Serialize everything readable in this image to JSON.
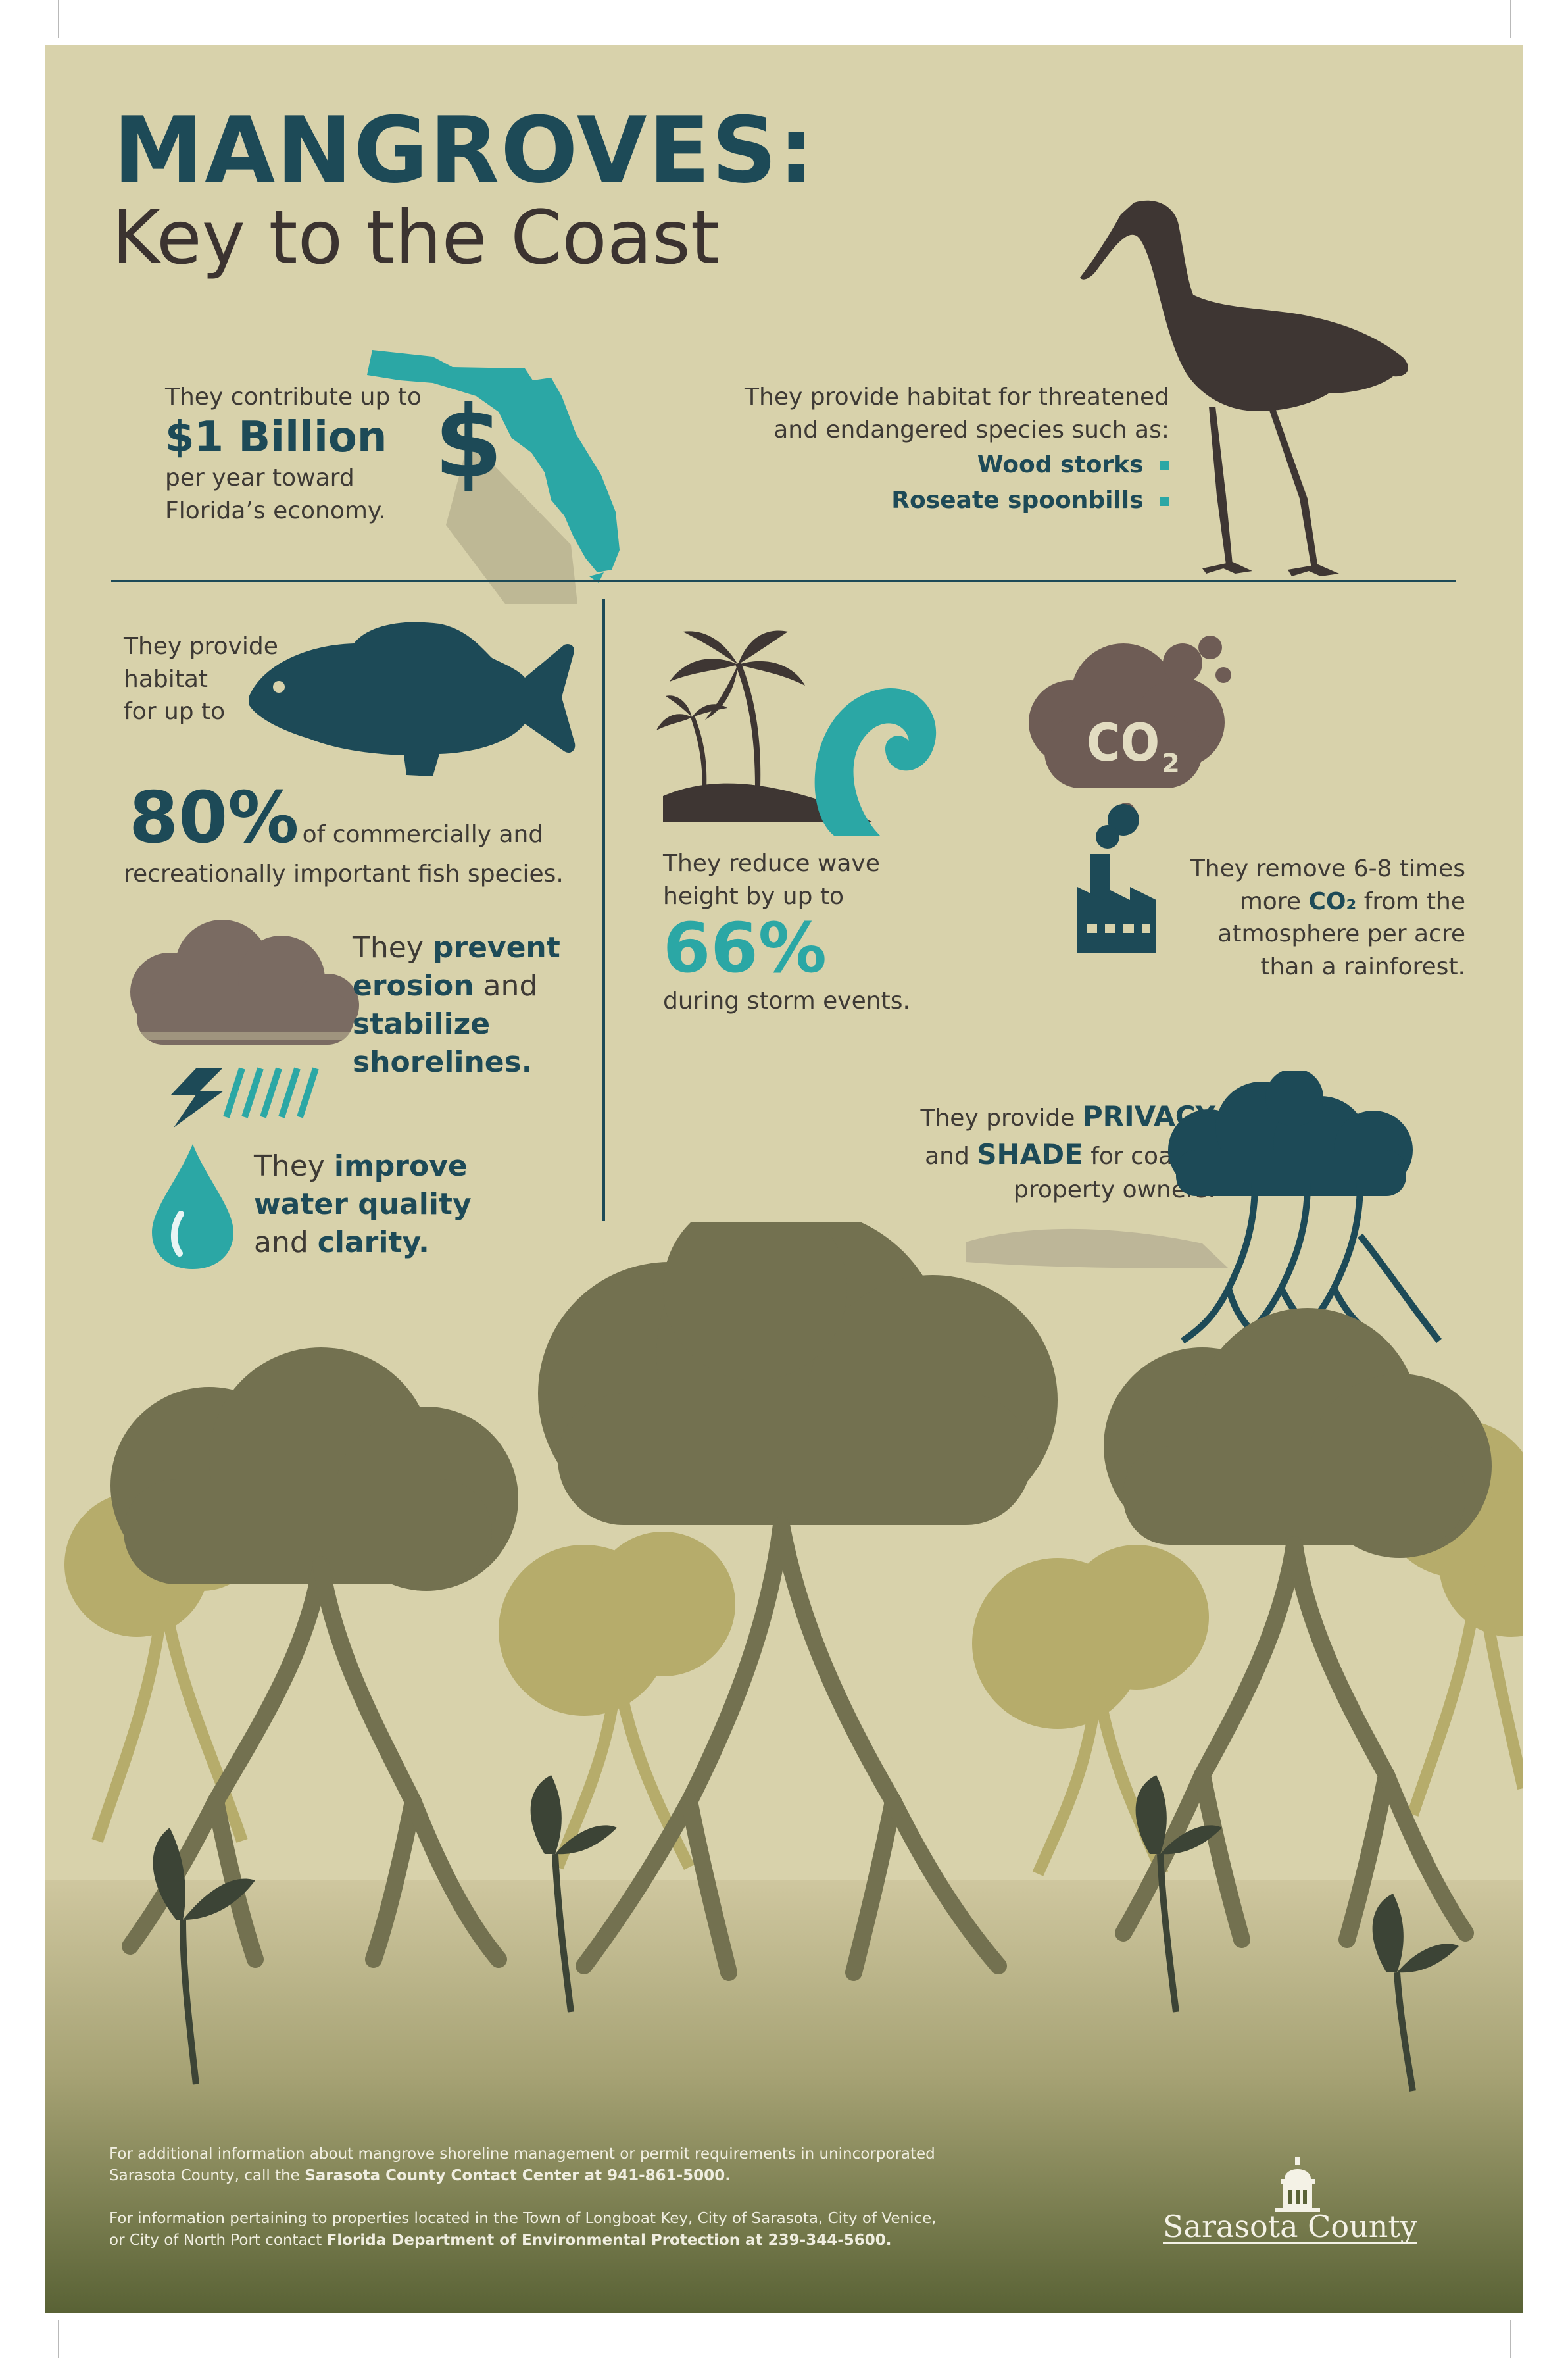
{
  "title": "MANGROVES:",
  "subtitle": "Key to the Coast",
  "economy": {
    "line1": "They contribute up to",
    "amount": "$1 Billion",
    "line2": "per year toward",
    "line3": "Florida’s economy."
  },
  "habitat": {
    "line1": "They provide habitat for threatened",
    "line2": "and endangered species such as:",
    "species": [
      "Wood storks",
      "Roseate spoonbills"
    ]
  },
  "fish": {
    "line1": "They provide",
    "line2": "habitat",
    "line3": "for up to",
    "percent": "80%",
    "line4": "of commercially and",
    "line5": "recreationally important fish species."
  },
  "waves": {
    "line1": "They reduce wave",
    "line2": "height by up to",
    "percent": "66%",
    "line3": "during storm events."
  },
  "co2": {
    "icon_label": "CO",
    "icon_sub": "2",
    "line1": "They remove 6-8 times",
    "line2_pre": "more",
    "line2_em": "CO₂",
    "line2_post": "from the",
    "line3": "atmosphere per acre",
    "line4": "than a rainforest."
  },
  "erosion": {
    "pre": "They",
    "em1": "prevent",
    "em2": "erosion",
    "mid": "and",
    "em3": "stabilize",
    "em4": "shorelines."
  },
  "privacy": {
    "pre": "They provide",
    "em1": "PRIVACY",
    "and": "and",
    "em2": "SHADE",
    "post": "for coastal",
    "line3": "property owners."
  },
  "water": {
    "pre": "They",
    "em1": "improve",
    "em2": "water quality",
    "and": "and",
    "em3": "clarity."
  },
  "footer": {
    "p1_line1": "For additional information about mangrove shoreline management or permit requirements in unincorporated",
    "p1_line2_pre": "Sarasota County, call the",
    "p1_bold": "Sarasota County Contact Center at 941-861-5000.",
    "p2_line1": "For information pertaining to properties located in the Town of Longboat Key, City of Sarasota, City of Venice,",
    "p2_line2_pre": "or City of North Port contact",
    "p2_bold": "Florida Department of Environmental Protection at 239-344-5600."
  },
  "logo": {
    "text": "Sarasota County"
  },
  "icons": [
    "florida-map-icon",
    "dollar-icon",
    "wood-stork-icon",
    "fish-icon",
    "palm-wave-icon",
    "co2-cloud-icon",
    "factory-icon",
    "storm-cloud-icon",
    "mangrove-tree-icon",
    "water-drop-icon",
    "courthouse-logo-icon"
  ],
  "colors": {
    "background": "#d8d2ab",
    "navy": "#1d4a57",
    "teal": "#2ba7a5",
    "brown": "#3b3330",
    "olive": "#737150"
  }
}
